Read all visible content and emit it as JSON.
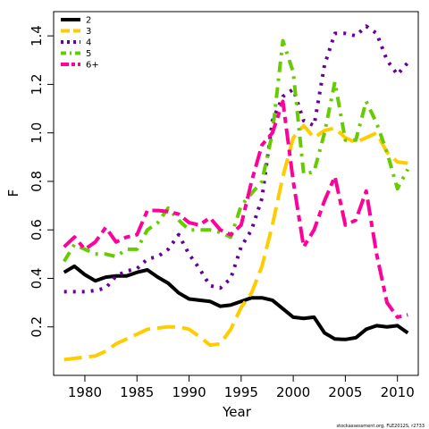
{
  "chart_data": {
    "type": "line",
    "xlabel": "Year",
    "ylabel": "F",
    "xlim": [
      1977,
      2012
    ],
    "ylim": [
      0.0,
      1.5
    ],
    "x_ticks": [
      1980,
      1985,
      1990,
      1995,
      2000,
      2005,
      2010
    ],
    "y_ticks": [
      0.2,
      0.4,
      0.6,
      0.8,
      1.0,
      1.2,
      1.4
    ],
    "grid": false,
    "legend_position": "top-left",
    "footnote": "stockassessment.org, FLE2012S, r2733",
    "x": [
      1978,
      1979,
      1980,
      1981,
      1982,
      1983,
      1984,
      1985,
      1986,
      1987,
      1988,
      1989,
      1990,
      1991,
      1992,
      1993,
      1994,
      1995,
      1996,
      1997,
      1998,
      1999,
      2000,
      2001,
      2002,
      2003,
      2004,
      2005,
      2006,
      2007,
      2008,
      2009,
      2010,
      2011
    ],
    "series": [
      {
        "name": "2",
        "color": "#000000",
        "dash": "solid",
        "values": [
          0.425,
          0.45,
          0.415,
          0.39,
          0.405,
          0.41,
          0.41,
          0.425,
          0.435,
          0.405,
          0.38,
          0.34,
          0.315,
          0.31,
          0.305,
          0.285,
          0.29,
          0.305,
          0.32,
          0.32,
          0.31,
          0.275,
          0.24,
          0.235,
          0.24,
          0.175,
          0.15,
          0.148,
          0.155,
          0.19,
          0.205,
          0.2,
          0.205,
          0.175
        ]
      },
      {
        "name": "3",
        "color": "#FFCC00",
        "dash": "longdash",
        "values": [
          0.065,
          0.07,
          0.075,
          0.08,
          0.1,
          0.13,
          0.15,
          0.17,
          0.19,
          0.195,
          0.2,
          0.2,
          0.19,
          0.16,
          0.125,
          0.13,
          0.19,
          0.28,
          0.34,
          0.45,
          0.62,
          0.82,
          0.98,
          1.03,
          0.98,
          1.01,
          1.02,
          0.98,
          0.96,
          0.98,
          1.0,
          0.92,
          0.88,
          0.875
        ]
      },
      {
        "name": "4",
        "color": "#660099",
        "dash": "dot",
        "values": [
          0.345,
          0.345,
          0.345,
          0.35,
          0.36,
          0.41,
          0.43,
          0.44,
          0.48,
          0.49,
          0.52,
          0.58,
          0.5,
          0.44,
          0.37,
          0.36,
          0.4,
          0.53,
          0.6,
          0.73,
          1.05,
          1.15,
          1.18,
          1.05,
          1.03,
          1.28,
          1.41,
          1.41,
          1.4,
          1.44,
          1.41,
          1.3,
          1.24,
          1.29
        ]
      },
      {
        "name": "5",
        "color": "#66CC00",
        "dash": "dashdot",
        "values": [
          0.47,
          0.54,
          0.52,
          0.5,
          0.5,
          0.49,
          0.52,
          0.52,
          0.6,
          0.63,
          0.69,
          0.64,
          0.6,
          0.6,
          0.6,
          0.59,
          0.57,
          0.7,
          0.75,
          0.8,
          1.0,
          1.38,
          1.25,
          0.83,
          0.84,
          1.0,
          1.21,
          0.97,
          0.97,
          1.13,
          1.04,
          0.92,
          0.77,
          0.85
        ]
      },
      {
        "name": "6+",
        "color": "#FF0099",
        "dash": "twodash",
        "values": [
          0.53,
          0.57,
          0.52,
          0.55,
          0.61,
          0.55,
          0.57,
          0.58,
          0.68,
          0.68,
          0.675,
          0.665,
          0.63,
          0.62,
          0.65,
          0.6,
          0.58,
          0.62,
          0.8,
          0.95,
          1.0,
          1.13,
          0.8,
          0.53,
          0.6,
          0.72,
          0.82,
          0.62,
          0.64,
          0.76,
          0.5,
          0.3,
          0.24,
          0.25
        ]
      }
    ]
  }
}
